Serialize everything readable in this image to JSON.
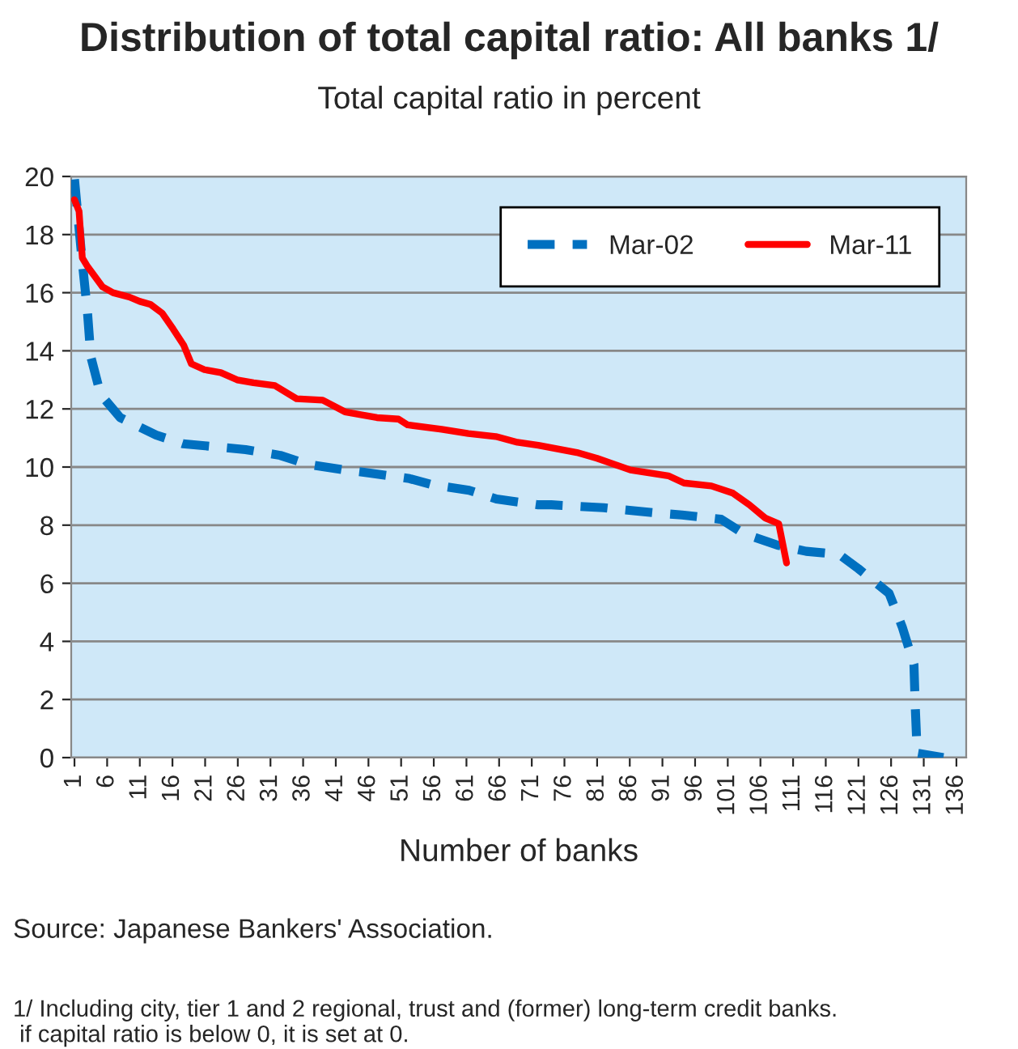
{
  "chart_data": {
    "type": "line",
    "title": "Distribution of total capital ratio: All banks 1/",
    "subtitle": "Total capital ratio in percent",
    "xlabel": "Number of banks",
    "series": [
      {
        "name": "Mar-02",
        "color": "#0070c0",
        "line_style": "dashed",
        "x": [
          1,
          2,
          3,
          3.5,
          5,
          8,
          13.5,
          17.6,
          22.5,
          27.2,
          32.5,
          36.6,
          42.3,
          46,
          52.3,
          55.6,
          61.4,
          65.6,
          72,
          74,
          82,
          84,
          91,
          94,
          100,
          103.5,
          108.8,
          113,
          118,
          121,
          125.7,
          127.7,
          129.5,
          129.7,
          130,
          134
        ],
        "values": [
          19.9,
          17.5,
          15.3,
          13.8,
          12.5,
          11.7,
          11.1,
          10.8,
          10.7,
          10.6,
          10.4,
          10.1,
          9.9,
          9.8,
          9.6,
          9.4,
          9.2,
          8.9,
          8.7,
          8.7,
          8.6,
          8.55,
          8.4,
          8.35,
          8.2,
          7.7,
          7.3,
          7.1,
          7.0,
          6.5,
          5.65,
          4.5,
          3.2,
          1.75,
          0.15,
          0
        ]
      },
      {
        "name": "Mar-11",
        "color": "#ff0000",
        "line_style": "solid",
        "x": [
          1,
          1.7,
          2.2,
          3,
          5.3,
          6.9,
          9.4,
          11,
          12.6,
          14.4,
          16.1,
          17.7,
          18.9,
          20.9,
          23.4,
          25.9,
          28.4,
          31.7,
          35,
          39,
          42.4,
          47.3,
          50.6,
          52,
          57.2,
          61.3,
          65.5,
          68.8,
          72,
          77.9,
          81,
          86.1,
          91.9,
          94.3,
          98.5,
          101.8,
          104.3,
          106.7,
          108.8,
          110
        ],
        "values": [
          19.2,
          18.8,
          17.2,
          16.9,
          16.2,
          16.0,
          15.85,
          15.7,
          15.6,
          15.3,
          14.75,
          14.2,
          13.55,
          13.35,
          13.25,
          13.0,
          12.9,
          12.8,
          12.35,
          12.3,
          11.9,
          11.7,
          11.65,
          11.45,
          11.3,
          11.15,
          11.05,
          10.85,
          10.75,
          10.5,
          10.3,
          9.9,
          9.7,
          9.45,
          9.35,
          9.1,
          8.7,
          8.25,
          8.05,
          6.7
        ]
      }
    ],
    "xlim": [
      0.5,
      137.5
    ],
    "xticks": [
      1,
      6,
      11,
      16,
      21,
      26,
      31,
      36,
      41,
      46,
      51,
      56,
      61,
      66,
      71,
      76,
      81,
      86,
      91,
      96,
      101,
      106,
      111,
      116,
      121,
      126,
      131,
      136
    ],
    "ylim": [
      0,
      20
    ],
    "yticks": [
      0,
      2,
      4,
      6,
      8,
      10,
      12,
      14,
      16,
      18,
      20
    ],
    "grid": "y",
    "legend": "top right",
    "annotations": [
      "Source: Japanese Bankers' Association.",
      "1/ Including city, tier 1 and 2 regional, trust and (former) long-term credit banks.\n if capital ratio is below 0, it is set at 0."
    ]
  }
}
